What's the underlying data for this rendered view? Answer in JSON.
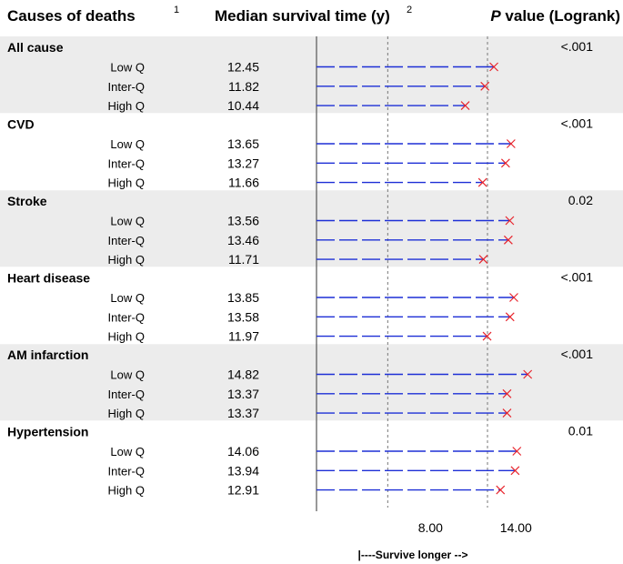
{
  "header": {
    "col1": "Causes of deaths",
    "col1_note": "1",
    "col2": "Median survival time (y)",
    "col2_note": "2",
    "col3_italic": "P",
    "col3_rest": " value (Logrank)"
  },
  "chart_data": {
    "type": "forest-style dot/dash plot",
    "x_axis": {
      "min": 0,
      "max": 15.0,
      "ticks": [
        8.0,
        14.0
      ],
      "tick_labels": [
        "8.00",
        "14.00"
      ],
      "reference_lines": [
        5.0,
        12.0
      ],
      "label": "|----Survive longer -->"
    },
    "groups": [
      {
        "name": "All cause",
        "p_value": "<.001",
        "shaded": true,
        "rows": [
          {
            "level": "Low Q",
            "value": 12.45,
            "label": "12.45"
          },
          {
            "level": "Inter-Q",
            "value": 11.82,
            "label": "11.82"
          },
          {
            "level": "High Q",
            "value": 10.44,
            "label": "10.44"
          }
        ]
      },
      {
        "name": "CVD",
        "p_value": "<.001",
        "shaded": false,
        "rows": [
          {
            "level": "Low Q",
            "value": 13.65,
            "label": "13.65"
          },
          {
            "level": "Inter-Q",
            "value": 13.27,
            "label": "13.27"
          },
          {
            "level": "High Q",
            "value": 11.66,
            "label": "11.66"
          }
        ]
      },
      {
        "name": "Stroke",
        "p_value": "0.02",
        "shaded": true,
        "rows": [
          {
            "level": "Low Q",
            "value": 13.56,
            "label": "13.56"
          },
          {
            "level": "Inter-Q",
            "value": 13.46,
            "label": "13.46"
          },
          {
            "level": "High Q",
            "value": 11.71,
            "label": "11.71"
          }
        ]
      },
      {
        "name": "Heart disease",
        "p_value": "<.001",
        "shaded": false,
        "rows": [
          {
            "level": "Low Q",
            "value": 13.85,
            "label": "13.85"
          },
          {
            "level": "Inter-Q",
            "value": 13.58,
            "label": "13.58"
          },
          {
            "level": "High Q",
            "value": 11.97,
            "label": "11.97"
          }
        ]
      },
      {
        "name": "AM infarction",
        "p_value": "<.001",
        "shaded": true,
        "rows": [
          {
            "level": "Low Q",
            "value": 14.82,
            "label": "14.82"
          },
          {
            "level": "Inter-Q",
            "value": 13.37,
            "label": "13.37"
          },
          {
            "level": "High Q",
            "value": 13.37,
            "label": "13.37"
          }
        ]
      },
      {
        "name": "Hypertension",
        "p_value": "0.01",
        "shaded": false,
        "rows": [
          {
            "level": "Low Q",
            "value": 14.06,
            "label": "14.06"
          },
          {
            "level": "Inter-Q",
            "value": 13.94,
            "label": "13.94"
          },
          {
            "level": "High Q",
            "value": 12.91,
            "label": "12.91"
          }
        ]
      }
    ]
  },
  "colors": {
    "shade": "#ececec",
    "line": "#1d2fd6",
    "marker": "#e8242c",
    "axis": "#555555",
    "ref": "#777777"
  }
}
